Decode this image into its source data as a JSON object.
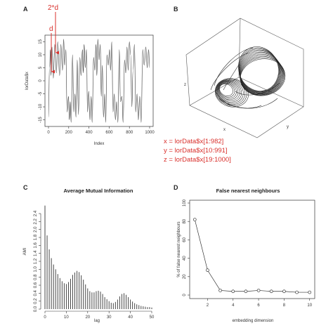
{
  "panels": {
    "a": {
      "label": "A",
      "xlabel": "Index",
      "ylabel": "lorData$x",
      "annotation_2d": "2*d",
      "annotation_d": "d"
    },
    "b": {
      "label": "B",
      "axis_z": "z",
      "axis_x": "x",
      "axis_y": "y",
      "equations": [
        "x = lorData$x[1:982]",
        "y = lorData$x[10:991]",
        "z = lorData$x[19:1000]"
      ]
    },
    "c": {
      "label": "C",
      "title": "Average Mutual Information",
      "xlabel": "lag",
      "ylabel": "AMI"
    },
    "d": {
      "label": "D",
      "title": "False nearest neighbours",
      "xlabel": "embedding dimension",
      "ylabel": "% of false nearest neighbours"
    }
  },
  "chart_data": [
    {
      "panel": "A",
      "type": "line",
      "xlabel": "Index",
      "ylabel": "lorData$x",
      "xlim": [
        0,
        1000
      ],
      "ylim": [
        -17,
        17
      ],
      "xticks": [
        0,
        200,
        400,
        600,
        800,
        1000
      ],
      "yticks": [
        -15,
        -10,
        -5,
        0,
        5,
        10,
        15
      ],
      "x": [
        0,
        10,
        20,
        25,
        35,
        48,
        62,
        78,
        92,
        110,
        122,
        138,
        150,
        160,
        172,
        184,
        198,
        206,
        215,
        224,
        238,
        250,
        262,
        272,
        284,
        296,
        310,
        322,
        336,
        344,
        352,
        364,
        376,
        386,
        398,
        410,
        422,
        432,
        446,
        458,
        470,
        478,
        488,
        500,
        512,
        522,
        532,
        544,
        556,
        566,
        578,
        590,
        604,
        614,
        626,
        638,
        650,
        662,
        674,
        686,
        700,
        712,
        726,
        738,
        752,
        764,
        776,
        788,
        800,
        812,
        824,
        836,
        850,
        862,
        876,
        888,
        902,
        916,
        932,
        946,
        962,
        976,
        990,
        1000
      ],
      "y": [
        -14,
        5,
        12,
        2,
        13,
        1,
        14,
        3,
        15,
        2,
        14,
        4,
        16,
        6,
        12,
        -12,
        -6,
        -15,
        -8,
        -16,
        10,
        -12,
        -5,
        -14,
        8,
        -13,
        9,
        2,
        12,
        3,
        14,
        5,
        12,
        -12,
        -4,
        -15,
        -6,
        -16,
        9,
        4,
        14,
        2,
        16,
        8,
        14,
        -6,
        6,
        -14,
        -5,
        -16,
        10,
        6,
        12,
        4,
        15,
        -12,
        -5,
        -15,
        -8,
        -16,
        12,
        -8,
        -6,
        -16,
        8,
        3,
        13,
        4,
        15,
        10,
        -10,
        4,
        14,
        -12,
        -5,
        -15,
        -6,
        -16,
        12,
        6,
        13,
        5,
        12,
        5
      ]
    },
    {
      "panel": "C",
      "type": "bar",
      "title": "Average Mutual Information",
      "xlabel": "lag",
      "ylabel": "AMI",
      "xlim": [
        0,
        50
      ],
      "ylim": [
        0,
        2.7
      ],
      "xticks": [
        0,
        10,
        20,
        30,
        40,
        50
      ],
      "yticks": [
        0.0,
        0.2,
        0.4,
        0.6,
        0.8,
        1.0,
        1.2,
        1.4,
        1.6,
        1.8,
        2.0,
        2.2,
        2.4
      ],
      "categories": [
        0,
        1,
        2,
        3,
        4,
        5,
        6,
        7,
        8,
        9,
        10,
        11,
        12,
        13,
        14,
        15,
        16,
        17,
        18,
        19,
        20,
        21,
        22,
        23,
        24,
        25,
        26,
        27,
        28,
        29,
        30,
        31,
        32,
        33,
        34,
        35,
        36,
        37,
        38,
        39,
        40,
        41,
        42,
        43,
        44,
        45,
        46,
        47,
        48,
        49,
        50
      ],
      "values": [
        2.6,
        1.85,
        1.5,
        1.28,
        1.12,
        1.0,
        0.88,
        0.78,
        0.7,
        0.65,
        0.63,
        0.68,
        0.76,
        0.86,
        0.92,
        0.96,
        0.93,
        0.85,
        0.74,
        0.62,
        0.52,
        0.45,
        0.42,
        0.42,
        0.45,
        0.46,
        0.44,
        0.38,
        0.3,
        0.25,
        0.2,
        0.16,
        0.15,
        0.18,
        0.24,
        0.32,
        0.38,
        0.4,
        0.36,
        0.3,
        0.24,
        0.19,
        0.15,
        0.12,
        0.1,
        0.08,
        0.07,
        0.06,
        0.05,
        0.05,
        0.04
      ]
    },
    {
      "panel": "D",
      "type": "line",
      "title": "False nearest neighbours",
      "xlabel": "embedding dimension",
      "ylabel": "% of false nearest neighbours",
      "xlim": [
        1,
        10
      ],
      "ylim": [
        0,
        100
      ],
      "xticks": [
        2,
        4,
        6,
        8,
        10
      ],
      "yticks": [
        0,
        20,
        40,
        60,
        80,
        100
      ],
      "x": [
        1,
        2,
        3,
        4,
        5,
        6,
        7,
        8,
        9,
        10
      ],
      "y": [
        82,
        27,
        5,
        4,
        4,
        5,
        4,
        4,
        3,
        3
      ]
    }
  ]
}
